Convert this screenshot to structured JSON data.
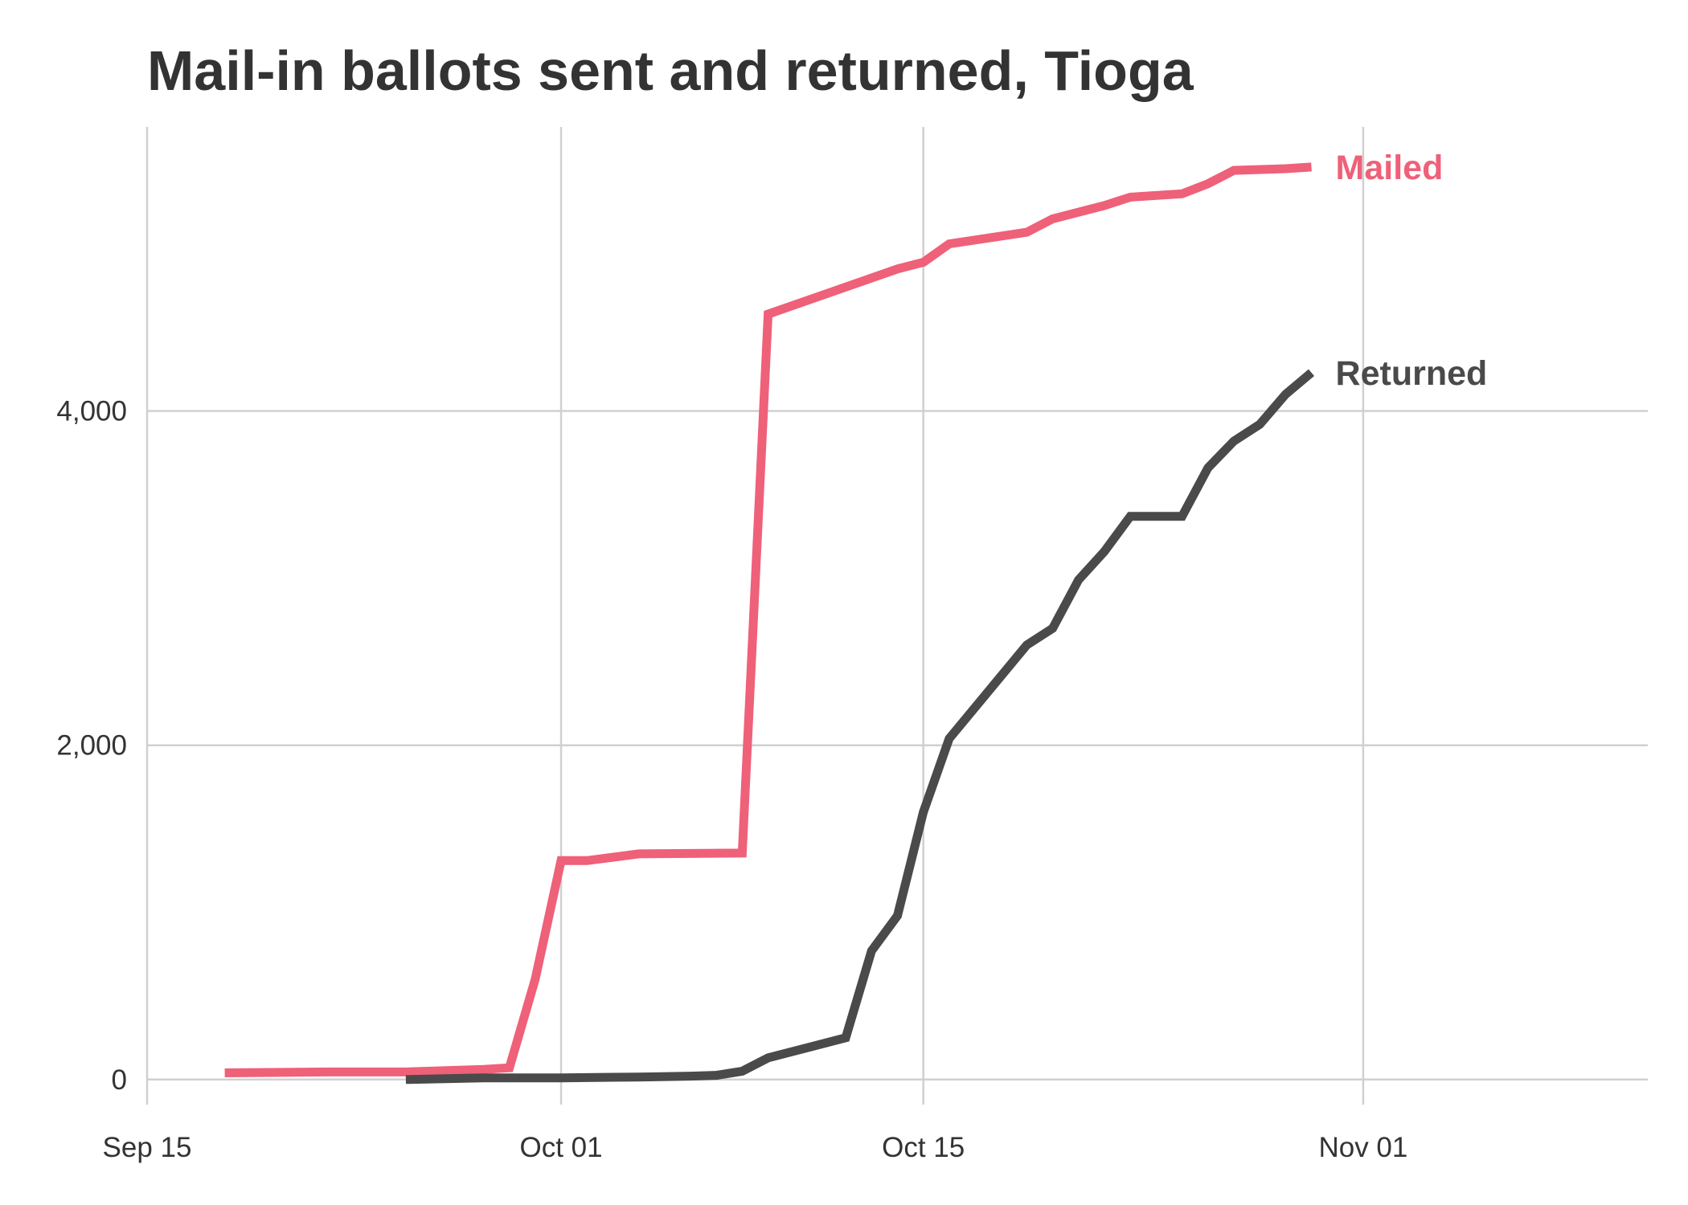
{
  "chart_data": {
    "type": "line",
    "title": "Mail-in ballots sent and returned, Tioga",
    "xlabel": "",
    "ylabel": "",
    "x_axis": {
      "type": "date",
      "range": [
        "2020-09-15",
        "2020-11-12"
      ],
      "ticks": [
        {
          "date": "2020-09-15",
          "label": "Sep 15"
        },
        {
          "date": "2020-10-01",
          "label": "Oct 01"
        },
        {
          "date": "2020-10-15",
          "label": "Oct 15"
        },
        {
          "date": "2020-11-01",
          "label": "Nov 01"
        }
      ]
    },
    "y_axis": {
      "range": [
        -150,
        5700
      ],
      "ticks": [
        {
          "value": 0,
          "label": "0"
        },
        {
          "value": 2000,
          "label": "2,000"
        },
        {
          "value": 4000,
          "label": "4,000"
        }
      ]
    },
    "grid": true,
    "legend": "direct labels at line ends",
    "series": [
      {
        "name": "Mailed",
        "color": "#ef6079",
        "points": [
          {
            "x": "2020-09-18",
            "y": 40
          },
          {
            "x": "2020-09-22",
            "y": 45
          },
          {
            "x": "2020-09-25",
            "y": 45
          },
          {
            "x": "2020-09-28",
            "y": 60
          },
          {
            "x": "2020-09-29",
            "y": 70
          },
          {
            "x": "2020-09-30",
            "y": 600
          },
          {
            "x": "2020-10-01",
            "y": 1310
          },
          {
            "x": "2020-10-02",
            "y": 1310
          },
          {
            "x": "2020-10-04",
            "y": 1350
          },
          {
            "x": "2020-10-08",
            "y": 1355
          },
          {
            "x": "2020-10-09",
            "y": 4580
          },
          {
            "x": "2020-10-14",
            "y": 4850
          },
          {
            "x": "2020-10-15",
            "y": 4890
          },
          {
            "x": "2020-10-16",
            "y": 5000
          },
          {
            "x": "2020-10-19",
            "y": 5070
          },
          {
            "x": "2020-10-20",
            "y": 5150
          },
          {
            "x": "2020-10-22",
            "y": 5230
          },
          {
            "x": "2020-10-23",
            "y": 5280
          },
          {
            "x": "2020-10-25",
            "y": 5300
          },
          {
            "x": "2020-10-26",
            "y": 5360
          },
          {
            "x": "2020-10-27",
            "y": 5440
          },
          {
            "x": "2020-10-29",
            "y": 5450
          },
          {
            "x": "2020-10-30",
            "y": 5460
          }
        ]
      },
      {
        "name": "Returned",
        "color": "#4a4a4a",
        "points": [
          {
            "x": "2020-09-25",
            "y": 0
          },
          {
            "x": "2020-09-28",
            "y": 10
          },
          {
            "x": "2020-10-01",
            "y": 10
          },
          {
            "x": "2020-10-04",
            "y": 15
          },
          {
            "x": "2020-10-06",
            "y": 20
          },
          {
            "x": "2020-10-07",
            "y": 25
          },
          {
            "x": "2020-10-08",
            "y": 50
          },
          {
            "x": "2020-10-09",
            "y": 130
          },
          {
            "x": "2020-10-12",
            "y": 250
          },
          {
            "x": "2020-10-13",
            "y": 770
          },
          {
            "x": "2020-10-14",
            "y": 980
          },
          {
            "x": "2020-10-15",
            "y": 1600
          },
          {
            "x": "2020-10-16",
            "y": 2040
          },
          {
            "x": "2020-10-19",
            "y": 2600
          },
          {
            "x": "2020-10-20",
            "y": 2700
          },
          {
            "x": "2020-10-21",
            "y": 2990
          },
          {
            "x": "2020-10-22",
            "y": 3160
          },
          {
            "x": "2020-10-23",
            "y": 3370
          },
          {
            "x": "2020-10-25",
            "y": 3370
          },
          {
            "x": "2020-10-26",
            "y": 3660
          },
          {
            "x": "2020-10-27",
            "y": 3820
          },
          {
            "x": "2020-10-28",
            "y": 3920
          },
          {
            "x": "2020-10-29",
            "y": 4100
          },
          {
            "x": "2020-10-30",
            "y": 4230
          }
        ]
      }
    ]
  }
}
